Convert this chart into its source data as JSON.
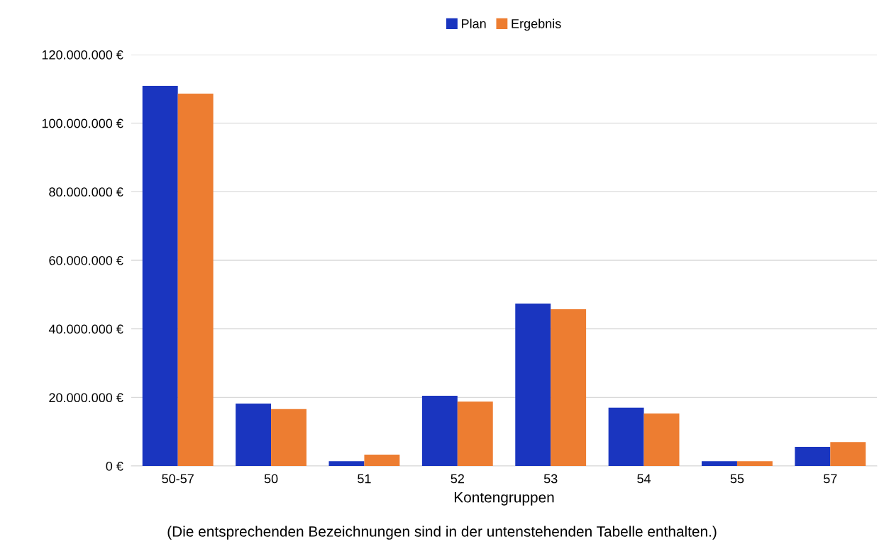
{
  "chart_data": {
    "type": "bar",
    "xlabel": "Kontengruppen",
    "annotations": [
      "(Die entsprechenden Bezeichnungen sind in der untenstehenden Tabelle enthalten.)"
    ],
    "categories": [
      "50-57",
      "50",
      "51",
      "52",
      "53",
      "54",
      "55",
      "57"
    ],
    "series": [
      {
        "name": "Plan",
        "color": "#1a35bf",
        "values": [
          110900000,
          18200000,
          1400000,
          20500000,
          47400000,
          17000000,
          1400000,
          5600000
        ]
      },
      {
        "name": "Ergebnis",
        "color": "#ed7d31",
        "values": [
          108600000,
          16600000,
          3300000,
          18800000,
          45700000,
          15300000,
          1400000,
          7000000
        ]
      }
    ],
    "ylim": [
      0,
      120000000
    ],
    "yticks": [
      {
        "value": 0,
        "label": "0 €"
      },
      {
        "value": 20000000,
        "label": "20.000.000 €"
      },
      {
        "value": 40000000,
        "label": "40.000.000 €"
      },
      {
        "value": 60000000,
        "label": "60.000.000 €"
      },
      {
        "value": 80000000,
        "label": "80.000.000 €"
      },
      {
        "value": 100000000,
        "label": "100.000.000 €"
      },
      {
        "value": 120000000,
        "label": "120.000.000 €"
      }
    ],
    "grid": "y",
    "legend": "top"
  }
}
